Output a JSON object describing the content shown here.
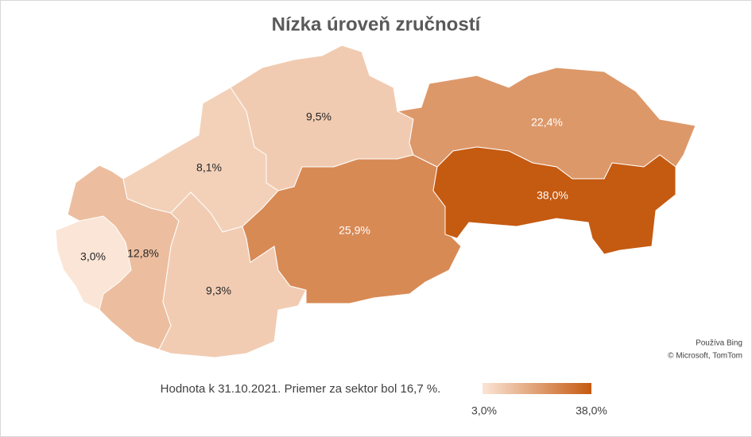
{
  "chart_data": {
    "type": "choropleth",
    "title": "Nízka úroveň zručností",
    "values": [
      3.0,
      12.8,
      8.1,
      9.3,
      9.5,
      25.9,
      22.4,
      38.0
    ],
    "value_labels": [
      "3,0%",
      "12,8%",
      "8,1%",
      "9,3%",
      "9,5%",
      "25,9%",
      "22,4%",
      "38,0%"
    ],
    "color_range": [
      "#fbe5d6",
      "#c55a11"
    ],
    "legend": {
      "min": {
        "value": 3.0,
        "label": "3,0%"
      },
      "max": {
        "value": 38.0,
        "label": "38,0%"
      }
    },
    "note": "Hodnota k 31.10.2021. Priemer za sektor bol 16,7 %.",
    "attribution": [
      "Používa Bing",
      "© Microsoft, TomTom"
    ]
  }
}
